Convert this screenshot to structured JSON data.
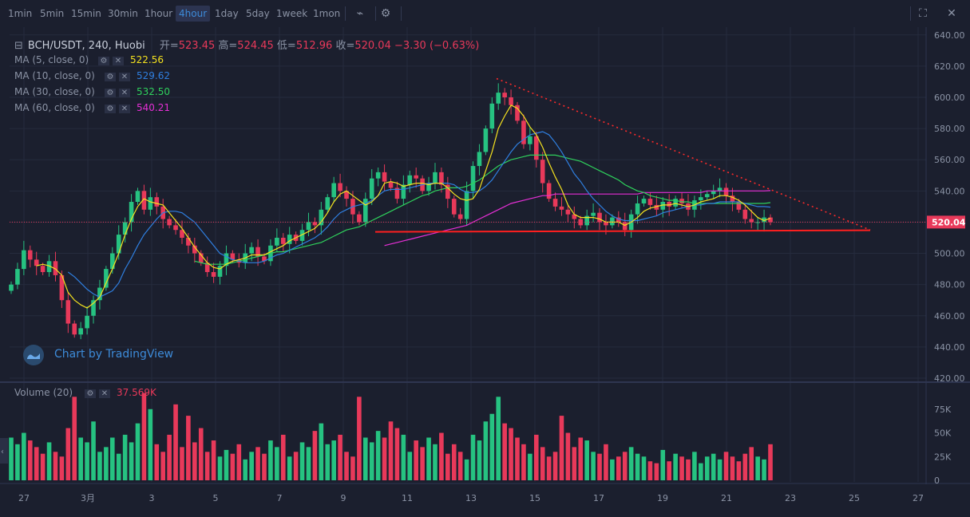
{
  "toolbar": {
    "timeframes": [
      "1min",
      "5min",
      "15min",
      "30min",
      "1hour",
      "4hour",
      "1day",
      "5day",
      "1week",
      "1mon"
    ],
    "active": "4hour",
    "tools": [
      "indicator-icon",
      "settings-icon"
    ],
    "right_tools": [
      "fullscreen-icon",
      "close-icon"
    ]
  },
  "header": {
    "symbol": "BCH/USDT, 240, Huobi",
    "open_label": "开",
    "open": "523.45",
    "high_label": "高",
    "high": "524.45",
    "low_label": "低",
    "low": "512.96",
    "close_label": "收",
    "close": "520.04",
    "change": "−3.30 (−0.63%)"
  },
  "ma_legend": [
    {
      "label": "MA (5, close, 0)",
      "value": "522.56",
      "color": "#f5e21f"
    },
    {
      "label": "MA (10, close, 0)",
      "value": "529.62",
      "color": "#2f7fe0"
    },
    {
      "label": "MA (30, close, 0)",
      "value": "532.50",
      "color": "#2fd15c"
    },
    {
      "label": "MA (60, close, 0)",
      "value": "540.21",
      "color": "#e62fd6"
    }
  ],
  "volume_legend": {
    "label": "Volume (20)",
    "value": "37.569K"
  },
  "price_axis": [
    "640.00",
    "620.00",
    "600.00",
    "580.00",
    "560.00",
    "540.00",
    "520.00",
    "500.00",
    "480.00",
    "460.00",
    "440.00",
    "420.00"
  ],
  "volume_axis": [
    "75K",
    "50K",
    "25K",
    "0"
  ],
  "last_price_label": "520.04",
  "watermark": "Chart by TradingView",
  "chart_data": {
    "type": "candlestick",
    "title": "BCH/USDT, 240, Huobi",
    "ylim": [
      420,
      645
    ],
    "x_ticks": [
      "27",
      "3月",
      "3",
      "5",
      "7",
      "9",
      "11",
      "13",
      "15",
      "17",
      "19",
      "21",
      "23",
      "25",
      "27"
    ],
    "price_ticks": [
      640,
      620,
      600,
      580,
      560,
      540,
      520,
      500,
      480,
      460,
      440,
      420
    ],
    "volume_ticks": [
      75000,
      50000,
      25000,
      0
    ],
    "last_price": 520.04,
    "closes": [
      480,
      490,
      502,
      496,
      492,
      488,
      495,
      486,
      470,
      455,
      448,
      452,
      460,
      470,
      478,
      490,
      500,
      512,
      520,
      533,
      540,
      528,
      536,
      530,
      522,
      518,
      515,
      510,
      505,
      500,
      494,
      488,
      485,
      492,
      500,
      496,
      494,
      500,
      504,
      498,
      495,
      505,
      510,
      506,
      512,
      508,
      515,
      520,
      518,
      528,
      536,
      545,
      540,
      535,
      525,
      520,
      535,
      548,
      552,
      546,
      542,
      535,
      544,
      550,
      548,
      540,
      545,
      552,
      544,
      535,
      525,
      522,
      540,
      556,
      565,
      580,
      596,
      603,
      600,
      595,
      585,
      570,
      575,
      560,
      545,
      535,
      530,
      528,
      525,
      522,
      518,
      524,
      526,
      520,
      518,
      523,
      520,
      515,
      525,
      532,
      535,
      531,
      528,
      533,
      530,
      535,
      532,
      528,
      534,
      536,
      538,
      540,
      542,
      537,
      533,
      528,
      522,
      520,
      520,
      523,
      520.04
    ],
    "ma5": [
      null,
      null,
      null,
      null,
      492,
      493,
      492,
      490,
      486,
      475,
      470,
      467,
      465,
      468,
      472,
      481,
      490,
      500,
      512,
      522,
      530,
      535,
      533,
      532,
      531,
      526,
      521,
      516,
      510,
      504,
      499,
      494,
      491,
      490,
      493,
      495,
      496,
      497,
      499,
      499,
      499,
      501,
      503,
      505,
      508,
      510,
      512,
      514,
      516,
      520,
      526,
      533,
      538,
      540,
      537,
      534,
      531,
      533,
      537,
      545,
      546,
      545,
      543,
      544,
      545,
      545,
      544,
      545,
      545,
      542,
      538,
      535,
      534,
      535,
      541,
      553,
      565,
      580,
      588,
      595,
      593,
      588,
      581,
      576,
      568,
      558,
      549,
      541,
      531,
      525,
      523,
      523,
      523,
      522,
      520,
      520,
      520,
      518,
      520,
      523,
      527,
      529,
      530,
      531,
      531,
      532,
      531,
      530,
      531,
      533,
      534,
      535,
      537,
      537,
      536,
      534,
      531,
      527,
      523,
      521,
      522.56
    ],
    "ma10": [
      null,
      null,
      null,
      null,
      null,
      null,
      null,
      null,
      null,
      488,
      485,
      481,
      477,
      474,
      472,
      474,
      476,
      481,
      490,
      497,
      505,
      512,
      517,
      522,
      526,
      527,
      527,
      526,
      523,
      520,
      515,
      510,
      505,
      500,
      498,
      496,
      495,
      494,
      494,
      494,
      495,
      497,
      499,
      500,
      502,
      504,
      506,
      508,
      510,
      513,
      517,
      522,
      526,
      528,
      530,
      531,
      532,
      534,
      537,
      540,
      541,
      541,
      541,
      542,
      543,
      544,
      545,
      545,
      545,
      545,
      544,
      541,
      539,
      539,
      540,
      543,
      547,
      553,
      559,
      565,
      570,
      573,
      576,
      577,
      578,
      576,
      571,
      565,
      558,
      551,
      546,
      540,
      535,
      531,
      527,
      524,
      522,
      521,
      521,
      521,
      522,
      523,
      524,
      526,
      527,
      528,
      529,
      530,
      531,
      531,
      532,
      532,
      533,
      533,
      533,
      533,
      532,
      531,
      530,
      530,
      529.62
    ],
    "ma30": [
      null,
      null,
      null,
      null,
      null,
      null,
      null,
      null,
      null,
      null,
      null,
      null,
      null,
      null,
      null,
      null,
      null,
      null,
      null,
      null,
      null,
      null,
      null,
      null,
      null,
      null,
      null,
      null,
      null,
      495,
      494,
      493,
      493,
      493,
      493,
      494,
      495,
      496,
      497,
      498,
      499,
      500,
      501,
      501,
      502,
      503,
      504,
      505,
      506,
      507,
      509,
      511,
      513,
      515,
      516,
      517,
      519,
      521,
      523,
      525,
      527,
      529,
      531,
      533,
      535,
      537,
      538,
      540,
      541,
      542,
      542,
      542,
      543,
      545,
      547,
      550,
      553,
      556,
      558,
      560,
      561,
      562,
      563,
      563,
      563,
      563,
      563,
      562,
      561,
      560,
      559,
      557,
      555,
      553,
      551,
      549,
      547,
      544,
      542,
      540,
      539,
      537,
      536,
      535,
      534,
      534,
      533,
      533,
      532,
      532,
      532,
      532,
      532,
      532,
      532,
      532,
      532,
      532,
      532,
      532,
      532.5
    ],
    "ma60": [
      null,
      null,
      null,
      null,
      null,
      null,
      null,
      null,
      null,
      null,
      null,
      null,
      null,
      null,
      null,
      null,
      null,
      null,
      null,
      null,
      null,
      null,
      null,
      null,
      null,
      null,
      null,
      null,
      null,
      null,
      null,
      null,
      null,
      null,
      null,
      null,
      null,
      null,
      null,
      null,
      null,
      null,
      null,
      null,
      null,
      null,
      null,
      null,
      null,
      null,
      null,
      null,
      null,
      null,
      null,
      null,
      null,
      null,
      null,
      505,
      506,
      507,
      508,
      509,
      510,
      511,
      512,
      513,
      514,
      515,
      516,
      517,
      518,
      520,
      522,
      524,
      526,
      528,
      530,
      532,
      533,
      534,
      535,
      536,
      537,
      537,
      538,
      538,
      538,
      538,
      538,
      538,
      538,
      538,
      538,
      538,
      538,
      538,
      538,
      538,
      539,
      539,
      539,
      539,
      539,
      539,
      539,
      539,
      539,
      539,
      540,
      540,
      540,
      540,
      540,
      540,
      540,
      540,
      540,
      540,
      540.21
    ],
    "volume": [
      45000,
      38000,
      50000,
      42000,
      35000,
      28000,
      40000,
      30000,
      25000,
      55000,
      88000,
      45000,
      40000,
      62000,
      30000,
      35000,
      45000,
      28000,
      48000,
      40000,
      60000,
      92000,
      75000,
      38000,
      30000,
      48000,
      80000,
      35000,
      68000,
      40000,
      55000,
      30000,
      42000,
      25000,
      32000,
      28000,
      38000,
      22000,
      30000,
      35000,
      28000,
      42000,
      35000,
      48000,
      25000,
      30000,
      40000,
      35000,
      52000,
      60000,
      38000,
      42000,
      48000,
      30000,
      25000,
      88000,
      45000,
      40000,
      52000,
      45000,
      62000,
      55000,
      48000,
      30000,
      42000,
      35000,
      45000,
      38000,
      50000,
      28000,
      38000,
      30000,
      22000,
      48000,
      42000,
      62000,
      70000,
      88000,
      60000,
      55000,
      45000,
      38000,
      28000,
      48000,
      35000,
      25000,
      30000,
      68000,
      50000,
      35000,
      45000,
      42000,
      30000,
      28000,
      38000,
      22000,
      25000,
      30000,
      35000,
      28000,
      25000,
      20000,
      18000,
      32000,
      20000,
      28000,
      25000,
      22000,
      30000,
      18000,
      25000,
      28000,
      22000,
      30000,
      25000,
      20000,
      28000,
      35000,
      25000,
      22000,
      38000
    ],
    "support_level": 514,
    "descending_trendline": {
      "from_price": 612,
      "to_price": 515
    }
  }
}
